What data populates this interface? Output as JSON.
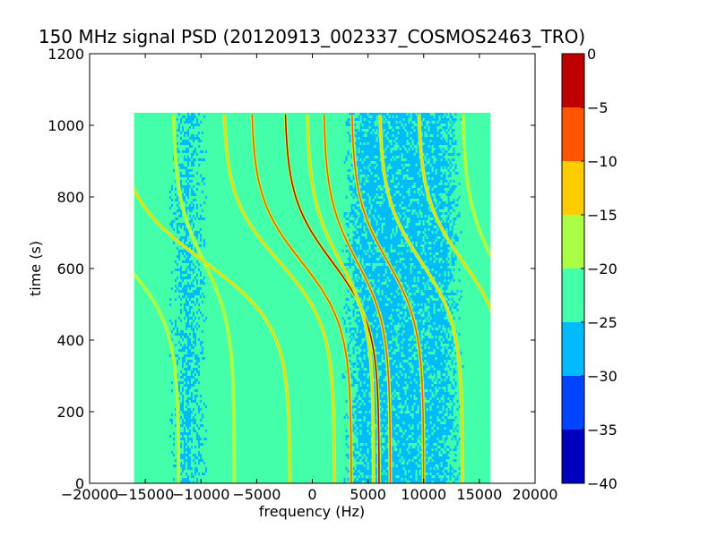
{
  "chart_data": {
    "type": "heatmap",
    "title": "150 MHz signal PSD (20120913_002337_COSMOS2463_TRO)",
    "xlabel": "frequency (Hz)",
    "ylabel": "time (s)",
    "xlim": [
      -20000,
      20000
    ],
    "ylim": [
      0,
      1200
    ],
    "x_ticks": [
      -20000,
      -15000,
      -10000,
      -5000,
      0,
      5000,
      10000,
      15000,
      20000
    ],
    "y_ticks": [
      0,
      200,
      400,
      600,
      800,
      1000,
      1200
    ],
    "data_extent": {
      "freq_range": [
        -16000,
        16000
      ],
      "time_range": [
        0,
        1035
      ]
    },
    "colorbar": {
      "range": [
        -40,
        0
      ],
      "ticks": [
        0,
        -5,
        -10,
        -15,
        -20,
        -25,
        -30,
        -35,
        -40
      ],
      "levels": [
        {
          "from": -40,
          "to": -35,
          "color": "#0000bf"
        },
        {
          "from": -35,
          "to": -30,
          "color": "#0044ff"
        },
        {
          "from": -30,
          "to": -25,
          "color": "#00bbff"
        },
        {
          "from": -25,
          "to": -20,
          "color": "#44ffaa"
        },
        {
          "from": -20,
          "to": -15,
          "color": "#aaff44"
        },
        {
          "from": -15,
          "to": -10,
          "color": "#ffcc00"
        },
        {
          "from": -10,
          "to": -5,
          "color": "#ff5500"
        },
        {
          "from": -5,
          "to": 0,
          "color": "#bf0000"
        }
      ]
    },
    "background_level": -22.5,
    "quiet_regions": [
      {
        "freq_range": [
          -13000,
          -9500
        ],
        "level": -27.5
      },
      {
        "freq_range": [
          2500,
          13500
        ],
        "level": -27.5
      }
    ],
    "doppler_traces": [
      {
        "t_start": 0,
        "t_end": 1035,
        "f_top": -12500,
        "f_bottom": -7000,
        "peak_level": -17.5
      },
      {
        "t_start": 0,
        "t_end": 1035,
        "f_top": -17500,
        "f_bottom": -2000,
        "peak_level": -12.5
      },
      {
        "t_start": 0,
        "t_end": 1035,
        "f_top": -8000,
        "f_bottom": 2000,
        "peak_level": -12.5
      },
      {
        "t_start": 0,
        "t_end": 1035,
        "f_top": -5500,
        "f_bottom": 3500,
        "peak_level": -7.5
      },
      {
        "t_start": 0,
        "t_end": 1035,
        "f_top": -2500,
        "f_bottom": 6000,
        "peak_level": -2.5
      },
      {
        "t_start": 0,
        "t_end": 1035,
        "f_top": 1000,
        "f_bottom": 7000,
        "peak_level": -7.5
      },
      {
        "t_start": 0,
        "t_end": 1035,
        "f_top": 3500,
        "f_bottom": 10000,
        "peak_level": -7.5
      },
      {
        "t_start": 0,
        "t_end": 1035,
        "f_top": 6000,
        "f_bottom": 13500,
        "peak_level": -12.5
      },
      {
        "t_start": 0,
        "t_end": 1035,
        "f_top": 9500,
        "f_bottom": 17500,
        "peak_level": -12.5
      },
      {
        "t_start": 0,
        "t_end": 1035,
        "f_top": 13500,
        "f_bottom": 19000,
        "peak_level": -17.5
      },
      {
        "t_start": 0,
        "t_end": 1035,
        "f_top": -22000,
        "f_bottom": -12000,
        "peak_level": -17.5
      },
      {
        "t_start": 0,
        "t_end": 1035,
        "f_top": -500,
        "f_bottom": 5500,
        "peak_level": -12.5
      }
    ]
  }
}
